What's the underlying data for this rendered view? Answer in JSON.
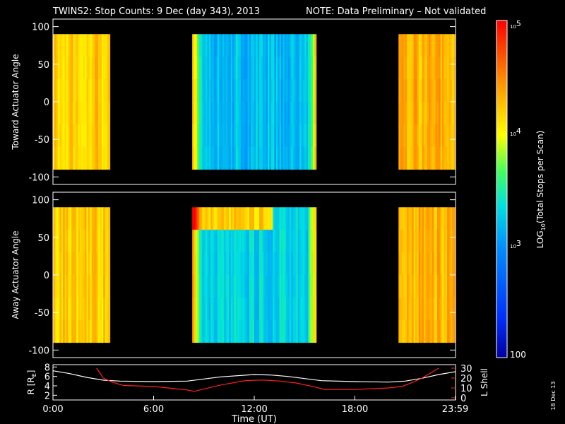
{
  "header": {
    "title": "TWINS2: Stop Counts:  9 Dec (day 343), 2013",
    "note": "NOTE: Data Preliminary – Not validated",
    "note_color": "#ff2020"
  },
  "chart_data": [
    {
      "type": "heatmap",
      "panel": "toward",
      "ylabel": "Toward Actuator Angle",
      "ylim": [
        -110,
        110
      ],
      "yticks": [
        100,
        50,
        0,
        -50,
        -100
      ],
      "x_hours": [
        0,
        24
      ],
      "data_angle_range": [
        -90,
        90
      ],
      "data_intervals_hours": [
        [
          0.0,
          3.4
        ],
        [
          8.3,
          15.7
        ],
        [
          20.6,
          24.0
        ]
      ],
      "colorscale": "log",
      "approx_log10_counts": {
        "dawn_block": 4.2,
        "midday_block": 3.2,
        "dusk_block": 4.3
      }
    },
    {
      "type": "heatmap",
      "panel": "away",
      "ylabel": "Away Actuator Angle",
      "ylim": [
        -110,
        110
      ],
      "yticks": [
        100,
        50,
        0,
        -50,
        -100
      ],
      "x_hours": [
        0,
        24
      ],
      "data_angle_range": [
        -90,
        90
      ],
      "data_intervals_hours": [
        [
          0.0,
          3.4
        ],
        [
          8.3,
          15.7
        ],
        [
          20.6,
          24.0
        ]
      ],
      "colorscale": "log",
      "approx_log10_counts": {
        "dawn_block": 4.2,
        "midday_block": 3.3,
        "dusk_block": 4.3
      }
    },
    {
      "type": "line",
      "panel": "orbit",
      "xlabel": "Time (UT)",
      "xticks": [
        {
          "hour": 0,
          "label": "0:00"
        },
        {
          "hour": 6,
          "label": "6:00"
        },
        {
          "hour": 12,
          "label": "12:00"
        },
        {
          "hour": 18,
          "label": "18:00"
        },
        {
          "hour": 23.98,
          "label": "23:59"
        }
      ],
      "xlim": [
        0,
        24
      ],
      "ylabel_left": "R [R",
      "ylabel_left_sub": "E",
      "ylabel_left_end": "]",
      "ylim_left": [
        1,
        8.5
      ],
      "yticks_left": [
        2,
        4,
        6,
        8
      ],
      "ylabel_right": "L Shell",
      "ylim_right": [
        0,
        30
      ],
      "yticks_right": [
        0,
        10,
        20,
        30
      ],
      "series": [
        {
          "axis": "left",
          "color": "#ffffff",
          "x": [
            0,
            1,
            2,
            3,
            4,
            6,
            8,
            10,
            12,
            13,
            14,
            16,
            18,
            20,
            21,
            22,
            23,
            24
          ],
          "y": [
            7.2,
            6.6,
            5.8,
            5.2,
            5.0,
            4.9,
            5.0,
            5.9,
            6.4,
            6.3,
            6.0,
            5.1,
            4.9,
            4.8,
            5.0,
            5.6,
            6.4,
            7.0
          ]
        },
        {
          "axis": "right",
          "color": "#ff2020",
          "x": [
            2.6,
            3.0,
            3.5,
            4.2,
            6.0,
            8.0,
            8.4,
            10.0,
            11.5,
            12.5,
            13.5,
            14.5,
            15.5,
            16.2,
            18.0,
            20.0,
            20.8,
            21.5,
            22.0,
            22.5,
            23.0
          ],
          "y": [
            30,
            20,
            16,
            12.5,
            11.5,
            8.0,
            6.5,
            13.0,
            17.5,
            18.0,
            17.0,
            15.0,
            11.5,
            8.5,
            8.5,
            10.0,
            11.5,
            16.0,
            20.0,
            25.0,
            30.0
          ]
        }
      ]
    },
    {
      "type": "colorbar",
      "scale": "log",
      "range": [
        100,
        100000
      ],
      "label": "LOG",
      "label_sub": "10",
      "label_end": "(Total Stops per Scan)",
      "ticks": [
        {
          "value": 100000,
          "base": "10",
          "exp": "5"
        },
        {
          "value": 10000,
          "base": "10",
          "exp": "4"
        },
        {
          "value": 1000,
          "base": "10",
          "exp": "3"
        },
        {
          "value": 100,
          "text": "100"
        }
      ]
    }
  ],
  "footer": {
    "date_stamp": "18 Dec 13"
  }
}
